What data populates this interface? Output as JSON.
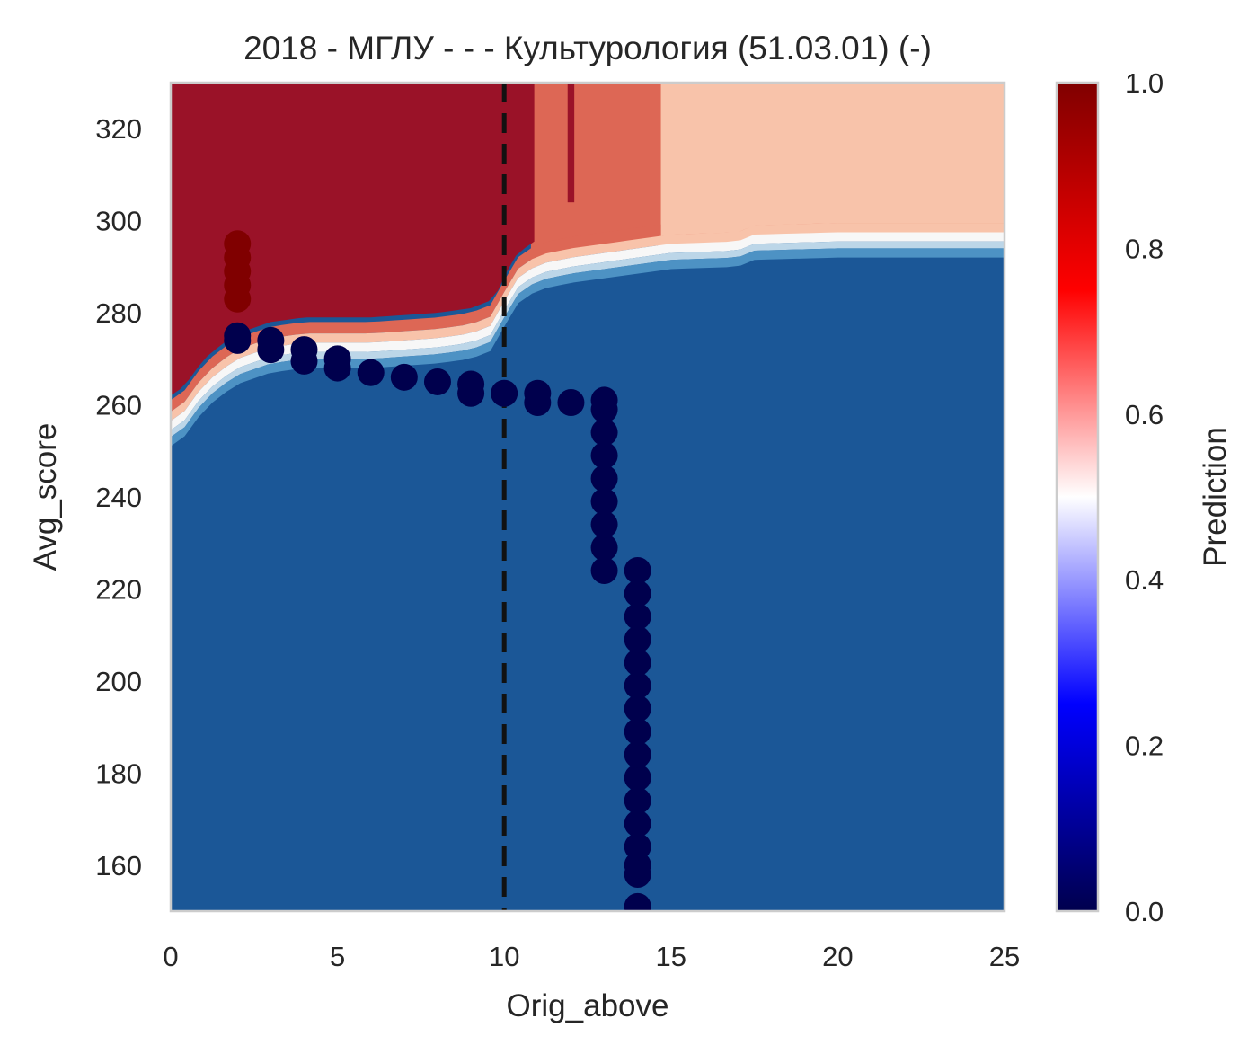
{
  "chart_data": {
    "type": "heatmap",
    "title": "2018 - МГЛУ - - - Культурология (51.03.01) (-)",
    "xlabel": "Orig_above",
    "ylabel": "Avg_score",
    "xlim": [
      0,
      25
    ],
    "ylim": [
      150,
      330
    ],
    "x_ticks": [
      "0",
      "5",
      "10",
      "15",
      "20",
      "25"
    ],
    "x_tick_values": [
      0,
      5,
      10,
      15,
      20,
      25
    ],
    "y_ticks": [
      "160",
      "180",
      "200",
      "220",
      "240",
      "260",
      "280",
      "300",
      "320"
    ],
    "y_tick_values": [
      160,
      180,
      200,
      220,
      240,
      260,
      280,
      300,
      320
    ],
    "grid": false,
    "colorbar": {
      "label": "Prediction",
      "range": [
        0,
        1
      ],
      "ticks": [
        "0.0",
        "0.2",
        "0.4",
        "0.6",
        "0.8",
        "1.0"
      ],
      "tick_values": [
        0,
        0.2,
        0.4,
        0.6,
        0.8,
        1.0
      ],
      "colormap": "seismic"
    },
    "prediction_regions": [
      {
        "value": 0.92,
        "color": "#9a1228",
        "description": "top-left high region"
      },
      {
        "value": 0.7,
        "color": "#dd6755",
        "description": "band x 11-14.7"
      },
      {
        "value": 0.62,
        "color": "#f8c3aa",
        "description": "right region x>14.7 above ~297"
      },
      {
        "value": 0.08,
        "color": "#1b5797",
        "description": "lower region"
      }
    ],
    "decision_boundary": [
      [
        0,
        251
      ],
      [
        0.4,
        253
      ],
      [
        1,
        259
      ],
      [
        1.5,
        262
      ],
      [
        2,
        264.5
      ],
      [
        3,
        267
      ],
      [
        4,
        268
      ],
      [
        5,
        268
      ],
      [
        6,
        268
      ],
      [
        7,
        268.5
      ],
      [
        8,
        269
      ],
      [
        9,
        270
      ],
      [
        9.7,
        272
      ],
      [
        10,
        277
      ],
      [
        10.4,
        282
      ],
      [
        11,
        285
      ],
      [
        12,
        286.5
      ],
      [
        13,
        287.5
      ],
      [
        14,
        288.5
      ],
      [
        15,
        289.5
      ],
      [
        17,
        290
      ],
      [
        17.5,
        291.5
      ],
      [
        20,
        292
      ],
      [
        25,
        292
      ]
    ],
    "vertical_line": {
      "x": 10,
      "style": "dashed",
      "color": "#111111"
    },
    "series": [
      {
        "points": [
          {
            "x": 2,
            "y": 283,
            "pred": 1.0
          },
          {
            "x": 2,
            "y": 286,
            "pred": 1.0
          },
          {
            "x": 2,
            "y": 289,
            "pred": 1.0
          },
          {
            "x": 2,
            "y": 292,
            "pred": 1.0
          },
          {
            "x": 2,
            "y": 295,
            "pred": 1.0
          },
          {
            "x": 2,
            "y": 274,
            "pred": 0.0
          },
          {
            "x": 2,
            "y": 275,
            "pred": 0.0
          },
          {
            "x": 3,
            "y": 272,
            "pred": 0.0
          },
          {
            "x": 3,
            "y": 274,
            "pred": 0.0
          },
          {
            "x": 4,
            "y": 269.5,
            "pred": 0.0
          },
          {
            "x": 4,
            "y": 272,
            "pred": 0.0
          },
          {
            "x": 5,
            "y": 268,
            "pred": 0.0
          },
          {
            "x": 5,
            "y": 270,
            "pred": 0.0
          },
          {
            "x": 6,
            "y": 267,
            "pred": 0.0
          },
          {
            "x": 7,
            "y": 266,
            "pred": 0.0
          },
          {
            "x": 8,
            "y": 265,
            "pred": 0.0
          },
          {
            "x": 9,
            "y": 262.5,
            "pred": 0.0
          },
          {
            "x": 9,
            "y": 264.5,
            "pred": 0.0
          },
          {
            "x": 10,
            "y": 262.5,
            "pred": 0.0
          },
          {
            "x": 11,
            "y": 260.5,
            "pred": 0.0
          },
          {
            "x": 11,
            "y": 262.5,
            "pred": 0.0
          },
          {
            "x": 12,
            "y": 260.5,
            "pred": 0.0
          },
          {
            "x": 13,
            "y": 224,
            "pred": 0.0
          },
          {
            "x": 13,
            "y": 229,
            "pred": 0.0
          },
          {
            "x": 13,
            "y": 234,
            "pred": 0.0
          },
          {
            "x": 13,
            "y": 239,
            "pred": 0.0
          },
          {
            "x": 13,
            "y": 244,
            "pred": 0.0
          },
          {
            "x": 13,
            "y": 249,
            "pred": 0.0
          },
          {
            "x": 13,
            "y": 254,
            "pred": 0.0
          },
          {
            "x": 13,
            "y": 259,
            "pred": 0.0
          },
          {
            "x": 13,
            "y": 261,
            "pred": 0.0
          },
          {
            "x": 14,
            "y": 151,
            "pred": 0.0
          },
          {
            "x": 14,
            "y": 158,
            "pred": 0.0
          },
          {
            "x": 14,
            "y": 160,
            "pred": 0.0
          },
          {
            "x": 14,
            "y": 164,
            "pred": 0.0
          },
          {
            "x": 14,
            "y": 169,
            "pred": 0.0
          },
          {
            "x": 14,
            "y": 174,
            "pred": 0.0
          },
          {
            "x": 14,
            "y": 179,
            "pred": 0.0
          },
          {
            "x": 14,
            "y": 184,
            "pred": 0.0
          },
          {
            "x": 14,
            "y": 189,
            "pred": 0.0
          },
          {
            "x": 14,
            "y": 194,
            "pred": 0.0
          },
          {
            "x": 14,
            "y": 199,
            "pred": 0.0
          },
          {
            "x": 14,
            "y": 204,
            "pred": 0.0
          },
          {
            "x": 14,
            "y": 209,
            "pred": 0.0
          },
          {
            "x": 14,
            "y": 214,
            "pred": 0.0
          },
          {
            "x": 14,
            "y": 219,
            "pred": 0.0
          },
          {
            "x": 14,
            "y": 224,
            "pred": 0.0
          }
        ]
      }
    ]
  }
}
